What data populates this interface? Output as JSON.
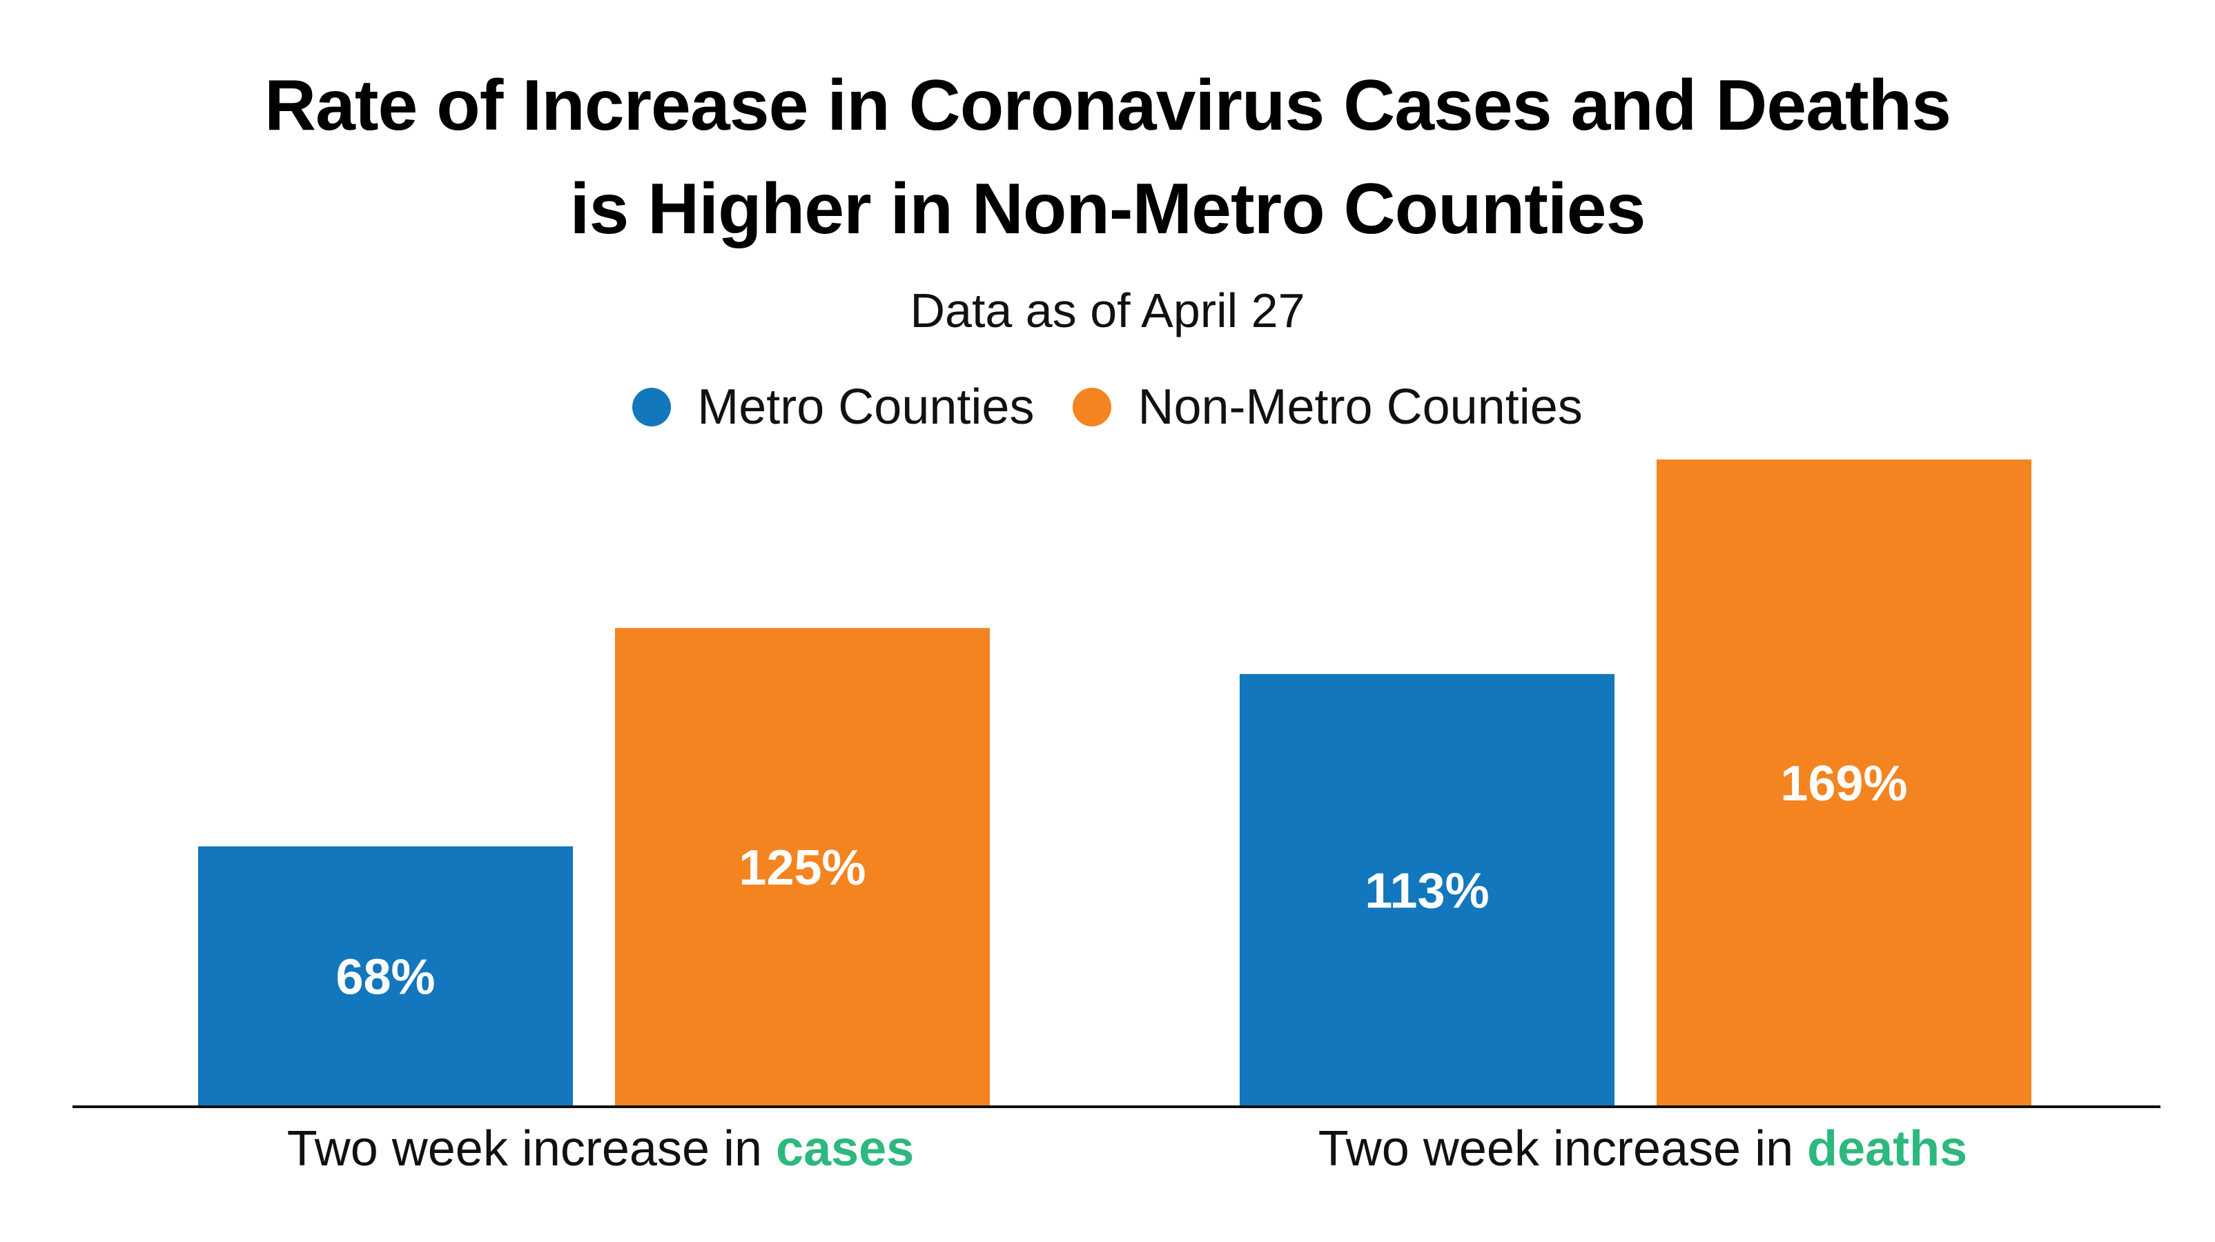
{
  "chart_data": {
    "type": "bar",
    "title_lines": [
      "Rate of Increase in Coronavirus Cases and Deaths",
      "is Higher in Non-Metro Counties"
    ],
    "subtitle": "Data as of April 27",
    "categories": [
      {
        "prefix": "Two week increase in ",
        "emphasis": "cases"
      },
      {
        "prefix": "Two week increase in ",
        "emphasis": "deaths"
      }
    ],
    "series": [
      {
        "name": "Metro Counties",
        "color": "#1277bd",
        "values": [
          68,
          113
        ],
        "labels": [
          "68%",
          "113%"
        ]
      },
      {
        "name": "Non-Metro Counties",
        "color": "#f48420",
        "values": [
          125,
          169
        ],
        "labels": [
          "125%",
          "169%"
        ]
      }
    ],
    "ylim": [
      0,
      169
    ],
    "grid": false,
    "legend_position": "top-center",
    "emphasis_color": "#2db87d"
  }
}
